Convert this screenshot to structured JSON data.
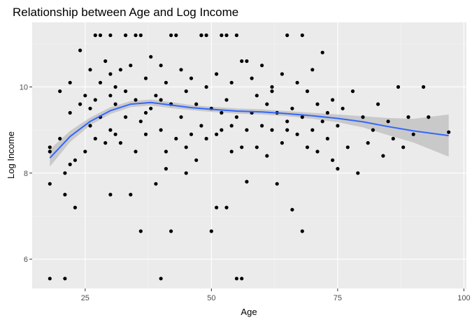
{
  "chart_data": {
    "type": "scatter",
    "title": "Relationship between Age and Log Income",
    "xlabel": "Age",
    "ylabel": "Log Income",
    "xlim": [
      14.5,
      100.5
    ],
    "ylim": [
      5.32,
      11.5
    ],
    "x_ticks": [
      25,
      50,
      75,
      100
    ],
    "y_ticks": [
      6,
      8,
      10
    ],
    "grid": true,
    "legend": "none",
    "colors": {
      "panel": "#ebebeb",
      "grid_major": "#ffffff",
      "points": "#000000",
      "smooth_line": "#3366ff",
      "confidence_band": "#bdbdbd"
    },
    "points": {
      "x": [
        18,
        18,
        18,
        20,
        20,
        21,
        21,
        22,
        22,
        22,
        23,
        24,
        24,
        25,
        25,
        26,
        26,
        26,
        27,
        27,
        27,
        28,
        28,
        29,
        29,
        30,
        30,
        30,
        30,
        31,
        31,
        32,
        32,
        33,
        33,
        34,
        34,
        35,
        35,
        35,
        36,
        36,
        37,
        37,
        38,
        38,
        39,
        39,
        40,
        40,
        40,
        41,
        41,
        42,
        42,
        43,
        43,
        44,
        44,
        45,
        45,
        46,
        46,
        47,
        47,
        48,
        48,
        49,
        49,
        50,
        50,
        51,
        51,
        52,
        52,
        53,
        53,
        54,
        54,
        55,
        55,
        56,
        56,
        57,
        57,
        58,
        58,
        59,
        59,
        60,
        60,
        61,
        61,
        62,
        62,
        63,
        63,
        64,
        64,
        65,
        65,
        66,
        66,
        67,
        67,
        68,
        68,
        69,
        69,
        70,
        70,
        71,
        71,
        72,
        72,
        73,
        73,
        74,
        74,
        75,
        75,
        76,
        77,
        78,
        79,
        80,
        81,
        82,
        83,
        84,
        85,
        86,
        87,
        88,
        89,
        90,
        92,
        93,
        97,
        28,
        30,
        33,
        36,
        42,
        49,
        51,
        52,
        53,
        54,
        55,
        56,
        65,
        68,
        40,
        18,
        21,
        23,
        31,
        37,
        48,
        57,
        62,
        41,
        45
      ],
      "y": [
        5.55,
        7.75,
        8.6,
        8.8,
        9.9,
        5.55,
        7.5,
        8.2,
        9.4,
        10.1,
        7.2,
        9.6,
        10.85,
        8.5,
        9.8,
        9.1,
        10.4,
        9.5,
        8.8,
        9.7,
        11.2,
        9.3,
        10.1,
        8.7,
        10.6,
        7.5,
        9.0,
        10.3,
        11.2,
        9.6,
        10.0,
        8.7,
        10.4,
        9.3,
        9.9,
        7.5,
        10.5,
        8.5,
        9.7,
        11.2,
        6.65,
        9.2,
        8.9,
        10.2,
        9.5,
        10.7,
        7.75,
        9.8,
        5.55,
        9.0,
        10.5,
        8.5,
        10.1,
        6.65,
        9.6,
        8.8,
        11.2,
        9.3,
        10.4,
        8.0,
        9.9,
        8.9,
        10.2,
        8.3,
        9.6,
        11.2,
        9.1,
        10.0,
        8.8,
        6.65,
        9.5,
        7.2,
        10.3,
        9.0,
        11.2,
        7.2,
        9.7,
        8.5,
        10.1,
        5.55,
        9.3,
        5.55,
        10.6,
        7.8,
        9.0,
        9.4,
        10.2,
        8.6,
        9.8,
        9.1,
        10.5,
        8.4,
        9.6,
        9.0,
        10.0,
        7.75,
        9.4,
        8.7,
        10.3,
        9.2,
        11.2,
        7.15,
        9.5,
        8.9,
        10.1,
        6.65,
        9.3,
        8.6,
        9.9,
        9.0,
        10.4,
        8.5,
        9.6,
        9.2,
        10.8,
        8.8,
        9.4,
        8.3,
        9.7,
        8.1,
        9.1,
        9.5,
        8.6,
        9.9,
        8.0,
        9.3,
        8.7,
        9.0,
        9.6,
        8.4,
        9.2,
        8.8,
        10.0,
        8.6,
        9.3,
        8.9,
        10.0,
        9.3,
        8.95,
        11.2,
        9.8,
        11.2,
        11.2,
        11.2,
        11.2,
        8.9,
        9.4,
        11.2,
        9.1,
        11.2,
        8.6,
        9.0,
        11.2,
        9.7,
        8.5,
        8.0,
        8.3,
        8.9,
        9.4,
        11.2,
        10.6,
        9.9,
        8.1,
        8.6
      ]
    },
    "smooth_line": {
      "x": [
        18,
        22,
        26,
        30,
        34,
        38,
        42,
        46,
        50,
        55,
        60,
        65,
        70,
        75,
        80,
        85,
        90,
        97
      ],
      "y": [
        8.35,
        8.85,
        9.2,
        9.45,
        9.6,
        9.64,
        9.58,
        9.52,
        9.48,
        9.44,
        9.42,
        9.38,
        9.33,
        9.27,
        9.19,
        9.08,
        8.98,
        8.87
      ],
      "band_lower": [
        8.15,
        8.72,
        9.11,
        9.37,
        9.53,
        9.57,
        9.51,
        9.46,
        9.42,
        9.38,
        9.36,
        9.32,
        9.26,
        9.18,
        9.06,
        8.88,
        8.71,
        8.38
      ],
      "band_upper": [
        8.55,
        8.98,
        9.29,
        9.53,
        9.67,
        9.71,
        9.65,
        9.58,
        9.54,
        9.5,
        9.48,
        9.44,
        9.4,
        9.36,
        9.32,
        9.28,
        9.26,
        9.36
      ]
    }
  }
}
